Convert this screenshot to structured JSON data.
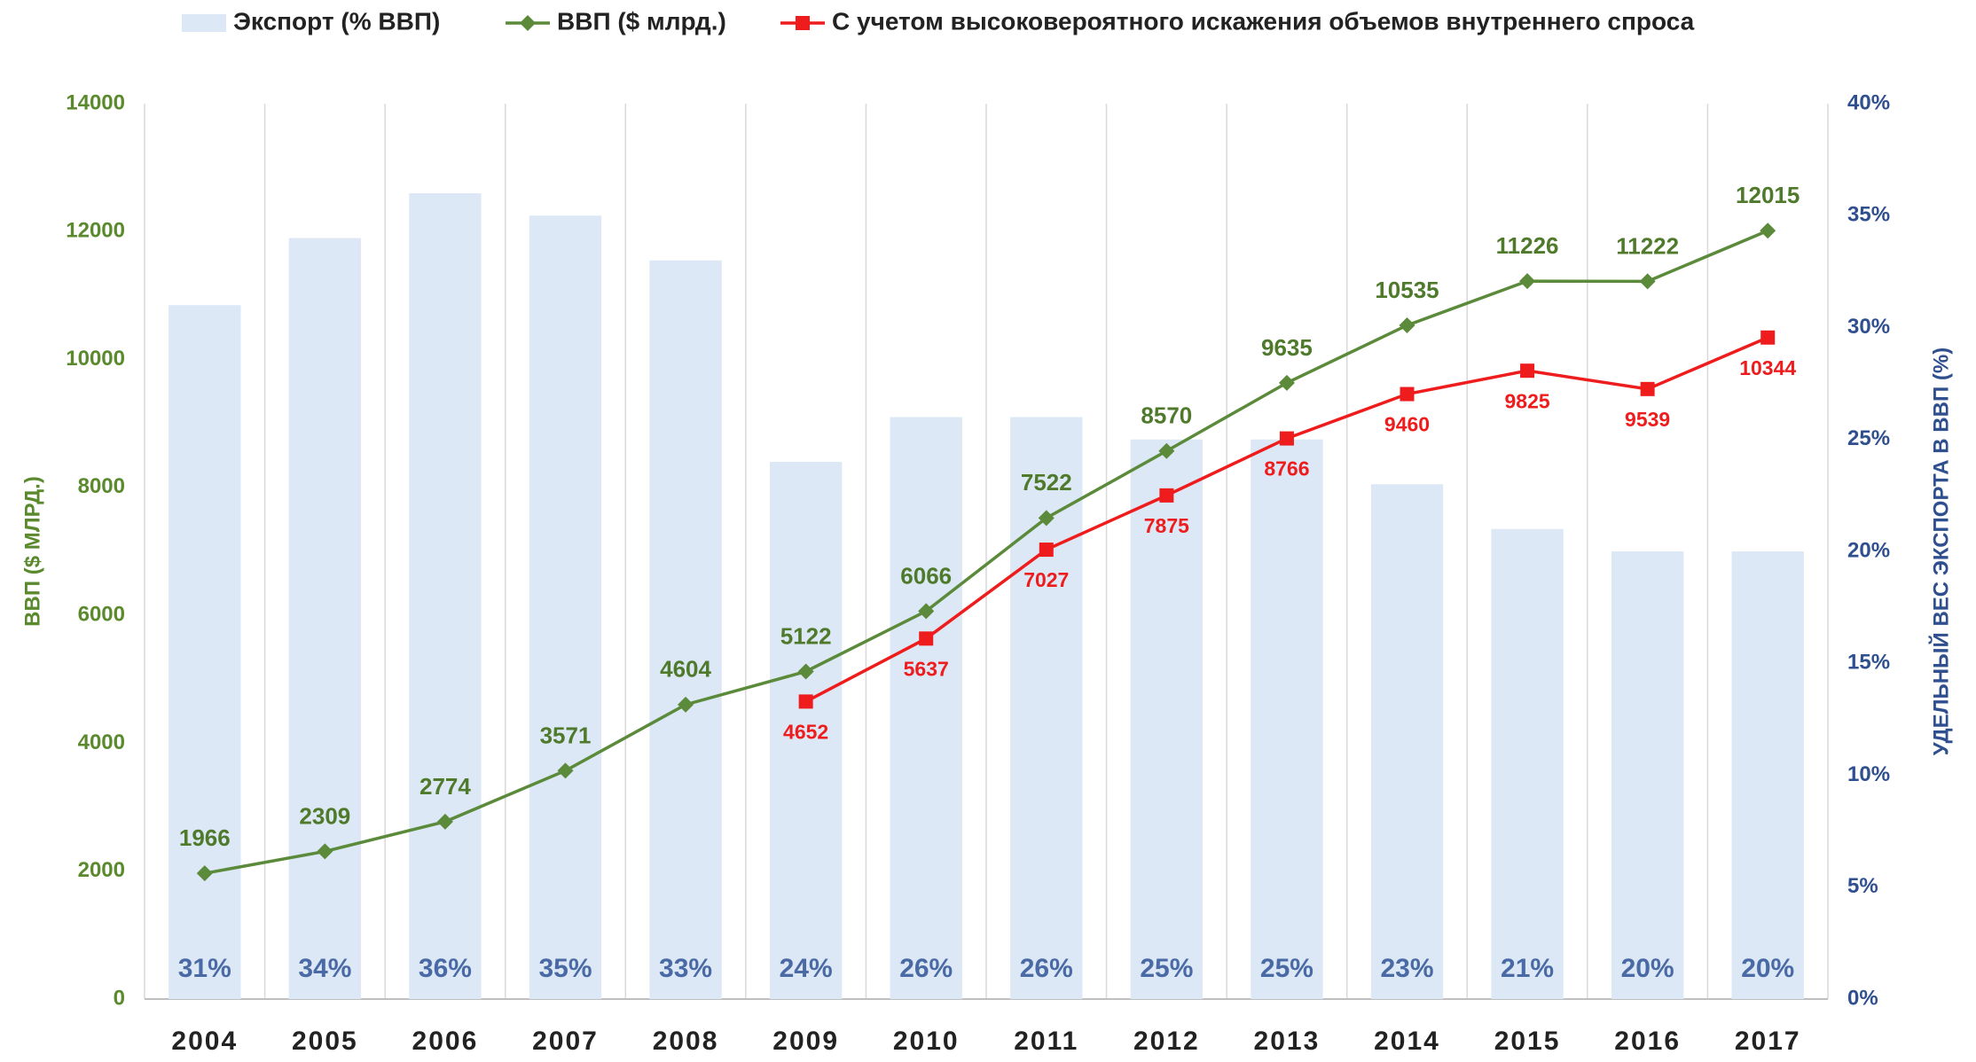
{
  "chart_data": {
    "type": "bar_line",
    "categories": [
      "2004",
      "2005",
      "2006",
      "2007",
      "2008",
      "2009",
      "2010",
      "2011",
      "2012",
      "2013",
      "2014",
      "2015",
      "2016",
      "2017"
    ],
    "series": [
      {
        "name": "Экспорт (% ВВП)",
        "type": "bar",
        "axis": "y2",
        "color": "#dce8f5",
        "values": [
          31,
          34,
          36,
          35,
          33,
          24,
          26,
          26,
          25,
          25,
          23,
          21,
          20,
          20
        ],
        "value_labels": [
          "31%",
          "34%",
          "36%",
          "35%",
          "33%",
          "24%",
          "26%",
          "26%",
          "25%",
          "25%",
          "23%",
          "21%",
          "20%",
          "20%"
        ]
      },
      {
        "name": "ВВП ($ млрд.)",
        "type": "line",
        "axis": "y",
        "color": "#5a8a3a",
        "values": [
          1966,
          2309,
          2774,
          3571,
          4604,
          5122,
          6066,
          7522,
          8570,
          9635,
          10535,
          11226,
          11222,
          12015
        ]
      },
      {
        "name": "С учетом высоковероятного искажения объемов внутреннего спроса",
        "type": "line",
        "axis": "y",
        "color": "#ee1c1c",
        "values": [
          null,
          null,
          null,
          null,
          null,
          4652,
          5637,
          7027,
          7875,
          8766,
          9460,
          9825,
          9539,
          10344
        ]
      }
    ],
    "ylabel": "ВВП ($ МЛРД.)",
    "y2label": "УДЕЛЬНЫЙ ВЕС ЭКСПОРТА В ВВП (%)",
    "ylim": [
      0,
      14000
    ],
    "yticks": [
      0,
      2000,
      4000,
      6000,
      8000,
      10000,
      12000,
      14000
    ],
    "y2lim": [
      0,
      40
    ],
    "y2ticks": [
      {
        "value": 0,
        "label": "0%"
      },
      {
        "value": 5,
        "label": "5%"
      },
      {
        "value": 10,
        "label": "10%"
      },
      {
        "value": 15,
        "label": "15%"
      },
      {
        "value": 20,
        "label": "20%"
      },
      {
        "value": 25,
        "label": "25%"
      },
      {
        "value": 30,
        "label": "30%"
      },
      {
        "value": 35,
        "label": "35%"
      },
      {
        "value": 40,
        "label": "40%"
      }
    ],
    "legend": "top",
    "grid": true
  }
}
